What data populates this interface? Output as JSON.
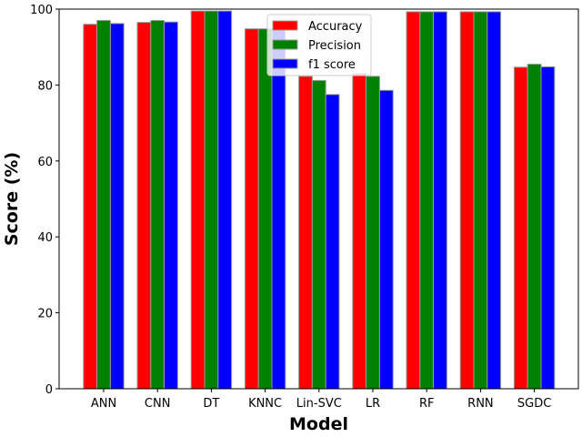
{
  "chart_data": {
    "type": "bar",
    "xlabel": "Model",
    "ylabel": "Score (%)",
    "ylim": [
      0,
      100
    ],
    "yticks": [
      0,
      20,
      40,
      60,
      80,
      100
    ],
    "grid": false,
    "legend_position": "top-center",
    "categories": [
      "ANN",
      "CNN",
      "DT",
      "KNNC",
      "Lin-SVC",
      "LR",
      "RF",
      "RNN",
      "SGDC"
    ],
    "series": [
      {
        "name": "Accuracy",
        "color": "#ff0000",
        "values": [
          96.0,
          96.5,
          99.5,
          94.8,
          82.3,
          83.0,
          99.3,
          99.3,
          84.7
        ]
      },
      {
        "name": "Precision",
        "color": "#008000",
        "values": [
          97.0,
          97.0,
          99.5,
          94.8,
          81.2,
          82.3,
          99.3,
          99.3,
          85.5
        ]
      },
      {
        "name": "f1 score",
        "color": "#0000ff",
        "values": [
          96.2,
          96.6,
          99.5,
          94.6,
          77.5,
          78.6,
          99.3,
          99.3,
          84.8
        ]
      }
    ]
  }
}
